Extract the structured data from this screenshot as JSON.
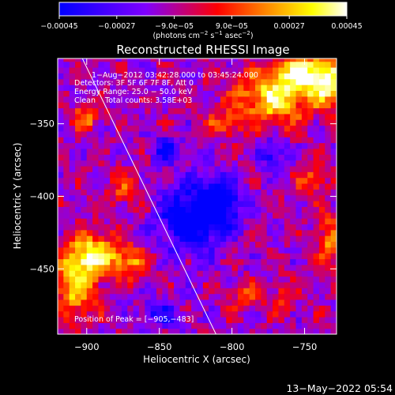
{
  "chart_data": {
    "type": "heatmap",
    "title": "Reconstructed RHESSI Image",
    "xlabel": "Heliocentric X (arcsec)",
    "ylabel": "Heliocentric Y (arcsec)",
    "xlim": [
      -920,
      -728
    ],
    "ylim": [
      -495,
      -305
    ],
    "x_ticks": [
      -900,
      -850,
      -800,
      -750
    ],
    "x_tick_labels": [
      "−900",
      "−850",
      "−800",
      "−750"
    ],
    "y_ticks": [
      -350,
      -400,
      -450
    ],
    "y_tick_labels": [
      "−350",
      "−400",
      "−450"
    ],
    "colorbar": {
      "range": [
        -0.00045,
        0.00045
      ],
      "ticks": [
        -0.00045,
        -0.00027,
        -9e-05,
        9e-05,
        0.00027,
        0.00045
      ],
      "tick_labels": [
        "−0.00045",
        "−0.00027",
        "−9.0e−05",
        "9.0e−05",
        "0.00027",
        "0.00045"
      ],
      "units_parts": [
        "(photons cm",
        "−2",
        " s",
        "−1",
        " asec",
        "−2",
        ")"
      ],
      "colors": [
        "#0000ff",
        "#7f00ff",
        "#ff0000",
        "#ff8800",
        "#ffff00",
        "#ffffff"
      ]
    },
    "info_lines": [
      "1−Aug−2012 03:42:28.000 to 03:45:24.000",
      "Detectors: 3F 5F 6F 7F 8F, Att 0",
      "Energy Range: 25.0 − 50.0 keV",
      "Clean    Total counts: 3.58E+03"
    ],
    "peak_label": "Position of Peak = [−905,−483]",
    "peak": [
      -905,
      -483
    ],
    "limb_line": [
      [
        -903,
        -305
      ],
      [
        -811,
        -495
      ]
    ],
    "bright_regions": [
      {
        "x": -772,
        "y": -332,
        "rx": 30,
        "ry": 22,
        "value": 0.00045
      },
      {
        "x": -750,
        "y": -315,
        "rx": 22,
        "ry": 14,
        "value": 0.00045
      },
      {
        "x": -733,
        "y": -322,
        "rx": 14,
        "ry": 18,
        "value": 0.0004
      },
      {
        "x": -745,
        "y": -388,
        "rx": 12,
        "ry": 12,
        "value": 0.00025
      },
      {
        "x": -733,
        "y": -432,
        "rx": 10,
        "ry": 24,
        "value": 0.0003
      },
      {
        "x": -895,
        "y": -440,
        "rx": 20,
        "ry": 18,
        "value": 0.00045
      },
      {
        "x": -908,
        "y": -462,
        "rx": 16,
        "ry": 26,
        "value": 0.0004
      },
      {
        "x": -870,
        "y": -445,
        "rx": 14,
        "ry": 12,
        "value": 0.0003
      },
      {
        "x": -900,
        "y": -345,
        "rx": 12,
        "ry": 10,
        "value": 0.0003
      },
      {
        "x": -875,
        "y": -395,
        "rx": 16,
        "ry": 14,
        "value": 0.0002
      },
      {
        "x": -805,
        "y": -350,
        "rx": 12,
        "ry": 10,
        "value": 0.00025
      },
      {
        "x": -790,
        "y": -470,
        "rx": 14,
        "ry": 12,
        "value": 0.0002
      },
      {
        "x": -765,
        "y": -470,
        "rx": 10,
        "ry": 14,
        "value": 0.0002
      }
    ],
    "dark_regions": [
      {
        "x": -828,
        "y": -415,
        "rx": 24,
        "ry": 26,
        "value": -0.00045
      },
      {
        "x": -808,
        "y": -405,
        "rx": 16,
        "ry": 18,
        "value": -0.0004
      },
      {
        "x": -845,
        "y": -368,
        "rx": 12,
        "ry": 10,
        "value": -0.0003
      },
      {
        "x": -772,
        "y": -370,
        "rx": 10,
        "ry": 12,
        "value": -0.0003
      },
      {
        "x": -850,
        "y": -480,
        "rx": 14,
        "ry": 10,
        "value": -0.00025
      }
    ]
  },
  "timestamp": "13−May−2022 05:54"
}
